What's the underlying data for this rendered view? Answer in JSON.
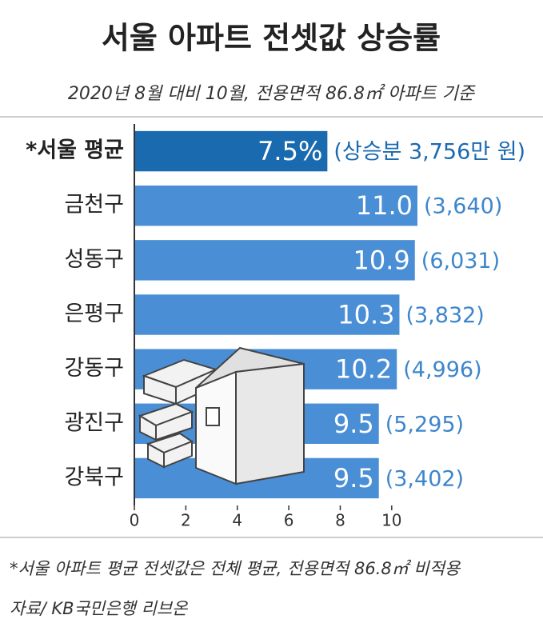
{
  "chart_data": {
    "type": "hbar",
    "title": "서울 아파트 전셋값 상승률",
    "subtitle": "2020년 8월 대비 10월, 전용면적 86.8㎡ 아파트 기준",
    "categories": [
      "*서울 평균",
      "금천구",
      "성동구",
      "은평구",
      "강동구",
      "광진구",
      "강북구"
    ],
    "values": [
      7.5,
      11.0,
      10.9,
      10.3,
      10.2,
      9.5,
      9.5
    ],
    "value_labels": [
      "7.5%",
      "11.0",
      "10.9",
      "10.3",
      "10.2",
      "9.5",
      "9.5"
    ],
    "annotations": [
      "(상승분 3,756만 원)",
      "(3,640)",
      "(6,031)",
      "(3,832)",
      "(4,996)",
      "(5,295)",
      "(3,402)"
    ],
    "colors": [
      "#1a6ab0",
      "#4a8fd6",
      "#4a8fd6",
      "#4a8fd6",
      "#4a8fd6",
      "#4a8fd6",
      "#4a8fd6"
    ],
    "xlim": [
      0,
      11
    ],
    "xticks": [
      0,
      2,
      4,
      6,
      8,
      10
    ],
    "notes": [
      "*서울 아파트 평균 전셋값은 전체 평균, 전용면적 86.8㎡ 비적용",
      "자료/ KB국민은행 리브온"
    ]
  }
}
